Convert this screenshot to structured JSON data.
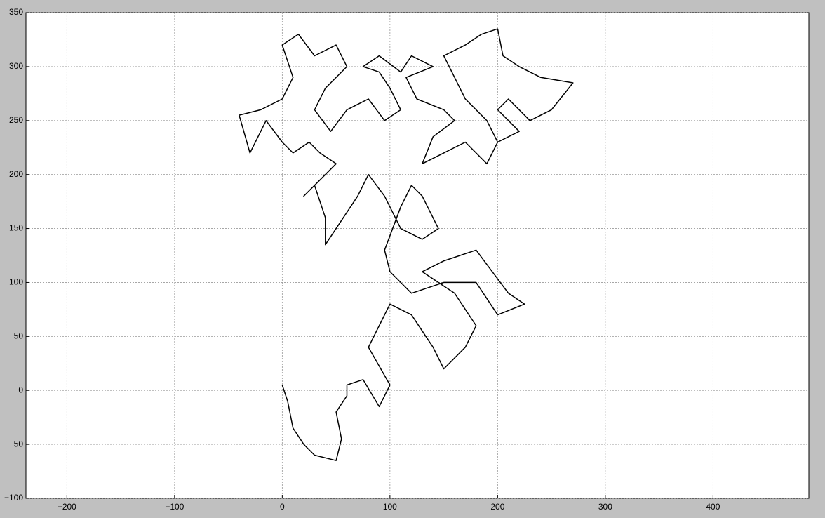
{
  "chart_data": {
    "type": "line",
    "color": "#000000",
    "grid": true,
    "xlim": [
      -238,
      489
    ],
    "ylim": [
      -100,
      350
    ],
    "xticks": [
      {
        "value": -200,
        "label": "−200"
      },
      {
        "value": -100,
        "label": "−100"
      },
      0,
      100,
      200,
      300,
      400
    ],
    "yticks": [
      {
        "value": -100,
        "label": "−100"
      },
      {
        "value": -50,
        "label": "−50"
      },
      0,
      50,
      100,
      150,
      200,
      250,
      300,
      350
    ],
    "x": [
      0,
      5,
      10,
      20,
      30,
      50,
      55,
      50,
      60,
      60,
      75,
      90,
      100,
      80,
      90,
      100,
      120,
      140,
      150,
      170,
      180,
      160,
      130,
      150,
      180,
      195,
      210,
      225,
      200,
      180,
      150,
      120,
      100,
      95,
      110,
      120,
      130,
      145,
      130,
      110,
      95,
      80,
      70,
      50,
      40,
      40,
      30,
      20,
      40,
      50,
      35,
      25,
      10,
      0,
      -15,
      -30,
      -40,
      -20,
      0,
      10,
      0,
      15,
      30,
      50,
      60,
      40,
      30,
      45,
      60,
      80,
      95,
      110,
      100,
      90,
      75,
      90,
      110,
      120,
      140,
      115,
      125,
      150,
      160,
      140,
      130,
      150,
      170,
      190,
      200,
      190,
      170,
      160,
      150,
      170,
      185,
      200,
      205,
      220,
      240,
      270,
      250,
      230,
      210,
      200,
      220,
      200
    ],
    "values": [
      5,
      -10,
      -35,
      -50,
      -60,
      -65,
      -45,
      -20,
      -5,
      5,
      10,
      -15,
      5,
      40,
      60,
      80,
      70,
      40,
      20,
      40,
      60,
      90,
      110,
      120,
      130,
      110,
      90,
      80,
      70,
      100,
      100,
      90,
      110,
      130,
      170,
      190,
      180,
      150,
      140,
      150,
      180,
      200,
      180,
      150,
      135,
      160,
      190,
      180,
      200,
      210,
      220,
      230,
      220,
      230,
      250,
      220,
      255,
      260,
      270,
      290,
      320,
      330,
      310,
      320,
      300,
      280,
      260,
      240,
      260,
      270,
      250,
      260,
      280,
      295,
      300,
      310,
      295,
      310,
      300,
      290,
      270,
      260,
      250,
      235,
      210,
      220,
      230,
      210,
      230,
      250,
      270,
      290,
      310,
      320,
      330,
      335,
      310,
      300,
      290,
      285,
      260,
      250,
      270,
      260,
      240,
      230
    ]
  }
}
